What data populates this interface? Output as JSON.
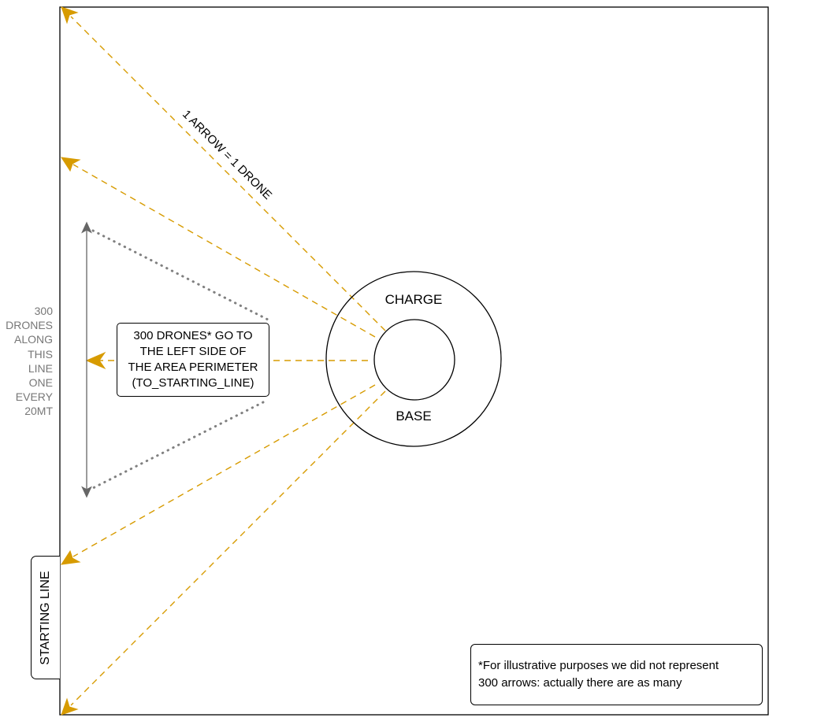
{
  "diagram": {
    "perimeter": "area-perimeter",
    "base": {
      "outer_label": "CHARGE",
      "inner_label": "BASE"
    },
    "arrow_legend": "1 ARROW = 1 DRONE",
    "side_note": [
      "300",
      "DRONES",
      "ALONG",
      "THIS",
      "LINE",
      "ONE",
      "EVERY",
      "20MT"
    ],
    "callout": [
      "300 DRONES* GO TO",
      "THE LEFT SIDE OF",
      "THE AREA PERIMETER",
      "(TO_STARTING_LINE)"
    ],
    "starting_line": "STARTING LINE",
    "footnote": [
      "*For illustrative purposes we did not represent",
      " 300 arrows: actually there are as many"
    ],
    "colors": {
      "arrow": "#d79b00",
      "dotted": "#808080",
      "measure": "#666666",
      "side_note": "#777777",
      "stroke": "#000000"
    },
    "drone_arrow_count": 5
  }
}
